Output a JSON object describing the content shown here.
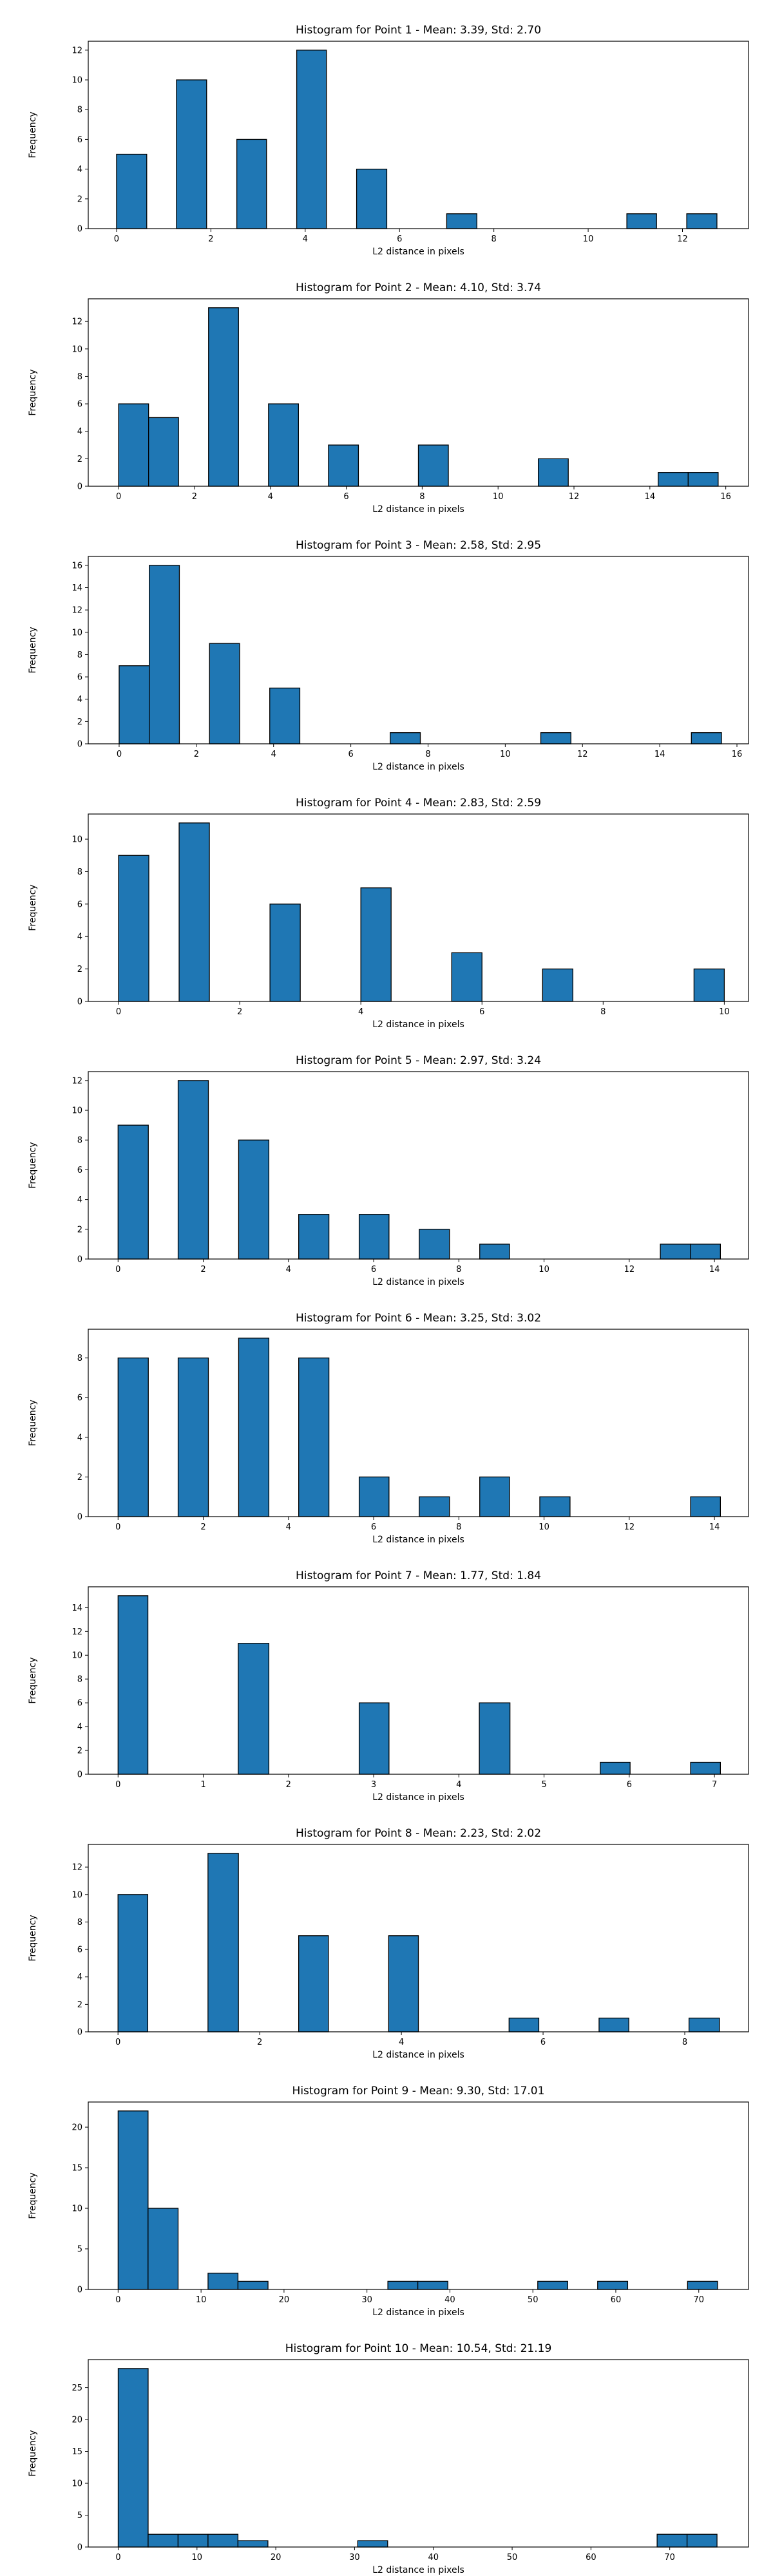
{
  "chart_data": [
    {
      "type": "bar",
      "title": "Histogram for Point 1 - Mean: 3.39, Std: 2.70",
      "xlabel": "L2 distance in pixels",
      "ylabel": "Frequency",
      "xlim": [
        -0.6,
        13.4
      ],
      "ylim": [
        0,
        12.6
      ],
      "xticks": [
        0,
        2,
        4,
        6,
        8,
        10,
        12
      ],
      "yticks": [
        0,
        2,
        4,
        6,
        8,
        10,
        12
      ],
      "bins": [
        {
          "x0": 0.0,
          "x1": 0.64,
          "count": 5
        },
        {
          "x0": 1.27,
          "x1": 1.91,
          "count": 10
        },
        {
          "x0": 2.55,
          "x1": 3.18,
          "count": 6
        },
        {
          "x0": 3.82,
          "x1": 4.45,
          "count": 12
        },
        {
          "x0": 5.09,
          "x1": 5.73,
          "count": 4
        },
        {
          "x0": 7.0,
          "x1": 7.64,
          "count": 1
        },
        {
          "x0": 10.82,
          "x1": 11.45,
          "count": 1
        },
        {
          "x0": 12.09,
          "x1": 12.73,
          "count": 1
        }
      ]
    },
    {
      "type": "bar",
      "title": "Histogram for Point 2 - Mean: 4.10, Std: 3.74",
      "xlabel": "L2 distance in pixels",
      "ylabel": "Frequency",
      "xlim": [
        -0.8,
        16.6
      ],
      "ylim": [
        0,
        13.65
      ],
      "xticks": [
        0,
        2,
        4,
        6,
        8,
        10,
        12,
        14,
        16
      ],
      "yticks": [
        0,
        2,
        4,
        6,
        8,
        10,
        12
      ],
      "bins": [
        {
          "x0": 0.0,
          "x1": 0.79,
          "count": 6
        },
        {
          "x0": 0.79,
          "x1": 1.58,
          "count": 5
        },
        {
          "x0": 2.37,
          "x1": 3.16,
          "count": 13
        },
        {
          "x0": 3.95,
          "x1": 4.74,
          "count": 6
        },
        {
          "x0": 5.53,
          "x1": 6.32,
          "count": 3
        },
        {
          "x0": 7.9,
          "x1": 8.69,
          "count": 3
        },
        {
          "x0": 11.06,
          "x1": 11.85,
          "count": 2
        },
        {
          "x0": 14.22,
          "x1": 15.01,
          "count": 1
        },
        {
          "x0": 15.01,
          "x1": 15.8,
          "count": 1
        }
      ]
    },
    {
      "type": "bar",
      "title": "Histogram for Point 3 - Mean: 2.58, Std: 2.95",
      "xlabel": "L2 distance in pixels",
      "ylabel": "Frequency",
      "xlim": [
        -0.8,
        16.3
      ],
      "ylim": [
        0,
        16.8
      ],
      "xticks": [
        0,
        2,
        4,
        6,
        8,
        10,
        12,
        14,
        16
      ],
      "yticks": [
        0,
        2,
        4,
        6,
        8,
        10,
        12,
        14,
        16
      ],
      "bins": [
        {
          "x0": 0.0,
          "x1": 0.78,
          "count": 7
        },
        {
          "x0": 0.78,
          "x1": 1.56,
          "count": 16
        },
        {
          "x0": 2.34,
          "x1": 3.12,
          "count": 9
        },
        {
          "x0": 3.9,
          "x1": 4.68,
          "count": 5
        },
        {
          "x0": 7.02,
          "x1": 7.8,
          "count": 1
        },
        {
          "x0": 10.92,
          "x1": 11.7,
          "count": 1
        },
        {
          "x0": 14.82,
          "x1": 15.6,
          "count": 1
        }
      ]
    },
    {
      "type": "bar",
      "title": "Histogram for Point 4 - Mean: 2.83, Std: 2.59",
      "xlabel": "L2 distance in pixels",
      "ylabel": "Frequency",
      "xlim": [
        -0.5,
        10.4
      ],
      "ylim": [
        0,
        11.55
      ],
      "xticks": [
        0,
        2,
        4,
        6,
        8,
        10
      ],
      "yticks": [
        0,
        2,
        4,
        6,
        8,
        10
      ],
      "bins": [
        {
          "x0": 0.0,
          "x1": 0.5,
          "count": 9
        },
        {
          "x0": 1.0,
          "x1": 1.5,
          "count": 11
        },
        {
          "x0": 2.5,
          "x1": 3.0,
          "count": 6
        },
        {
          "x0": 4.0,
          "x1": 4.5,
          "count": 7
        },
        {
          "x0": 5.5,
          "x1": 6.0,
          "count": 3
        },
        {
          "x0": 7.0,
          "x1": 7.5,
          "count": 2
        },
        {
          "x0": 9.5,
          "x1": 10.0,
          "count": 2
        }
      ]
    },
    {
      "type": "bar",
      "title": "Histogram for Point 5 - Mean: 2.97, Std: 3.24",
      "xlabel": "L2 distance in pixels",
      "ylabel": "Frequency",
      "xlim": [
        -0.7,
        14.8
      ],
      "ylim": [
        0,
        12.6
      ],
      "xticks": [
        0,
        2,
        4,
        6,
        8,
        10,
        12,
        14
      ],
      "yticks": [
        0,
        2,
        4,
        6,
        8,
        10,
        12
      ],
      "bins": [
        {
          "x0": 0.0,
          "x1": 0.71,
          "count": 9
        },
        {
          "x0": 1.41,
          "x1": 2.12,
          "count": 12
        },
        {
          "x0": 2.83,
          "x1": 3.54,
          "count": 8
        },
        {
          "x0": 4.24,
          "x1": 4.95,
          "count": 3
        },
        {
          "x0": 5.66,
          "x1": 6.36,
          "count": 3
        },
        {
          "x0": 7.07,
          "x1": 7.78,
          "count": 2
        },
        {
          "x0": 8.49,
          "x1": 9.19,
          "count": 1
        },
        {
          "x0": 12.73,
          "x1": 13.44,
          "count": 1
        },
        {
          "x0": 13.44,
          "x1": 14.14,
          "count": 1
        }
      ]
    },
    {
      "type": "bar",
      "title": "Histogram for Point 6 - Mean: 3.25, Std: 3.02",
      "xlabel": "L2 distance in pixels",
      "ylabel": "Frequency",
      "xlim": [
        -0.7,
        14.8
      ],
      "ylim": [
        0,
        9.45
      ],
      "xticks": [
        0,
        2,
        4,
        6,
        8,
        10,
        12,
        14
      ],
      "yticks": [
        0,
        2,
        4,
        6,
        8
      ],
      "bins": [
        {
          "x0": 0.0,
          "x1": 0.71,
          "count": 8
        },
        {
          "x0": 1.41,
          "x1": 2.12,
          "count": 8
        },
        {
          "x0": 2.83,
          "x1": 3.54,
          "count": 9
        },
        {
          "x0": 4.24,
          "x1": 4.95,
          "count": 8
        },
        {
          "x0": 5.66,
          "x1": 6.36,
          "count": 2
        },
        {
          "x0": 7.07,
          "x1": 7.78,
          "count": 1
        },
        {
          "x0": 8.49,
          "x1": 9.19,
          "count": 2
        },
        {
          "x0": 9.9,
          "x1": 10.61,
          "count": 1
        },
        {
          "x0": 13.44,
          "x1": 14.14,
          "count": 1
        }
      ]
    },
    {
      "type": "bar",
      "title": "Histogram for Point 7 - Mean: 1.77, Std: 1.84",
      "xlabel": "L2 distance in pixels",
      "ylabel": "Frequency",
      "xlim": [
        -0.35,
        7.4
      ],
      "ylim": [
        0,
        15.75
      ],
      "xticks": [
        0,
        1,
        2,
        3,
        4,
        5,
        6,
        7
      ],
      "yticks": [
        0,
        2,
        4,
        6,
        8,
        10,
        12,
        14
      ],
      "bins": [
        {
          "x0": 0.0,
          "x1": 0.35,
          "count": 15
        },
        {
          "x0": 1.41,
          "x1": 1.77,
          "count": 11
        },
        {
          "x0": 2.83,
          "x1": 3.18,
          "count": 6
        },
        {
          "x0": 4.24,
          "x1": 4.6,
          "count": 6
        },
        {
          "x0": 5.66,
          "x1": 6.01,
          "count": 1
        },
        {
          "x0": 6.72,
          "x1": 7.07,
          "count": 1
        }
      ]
    },
    {
      "type": "bar",
      "title": "Histogram for Point 8 - Mean: 2.23, Std: 2.02",
      "xlabel": "L2 distance in pixels",
      "ylabel": "Frequency",
      "xlim": [
        -0.42,
        8.9
      ],
      "ylim": [
        0,
        13.65
      ],
      "xticks": [
        0,
        2,
        4,
        6,
        8
      ],
      "yticks": [
        0,
        2,
        4,
        6,
        8,
        10,
        12
      ],
      "bins": [
        {
          "x0": 0.0,
          "x1": 0.42,
          "count": 10
        },
        {
          "x0": 1.27,
          "x1": 1.7,
          "count": 13
        },
        {
          "x0": 2.55,
          "x1": 2.97,
          "count": 7
        },
        {
          "x0": 3.82,
          "x1": 4.24,
          "count": 7
        },
        {
          "x0": 5.52,
          "x1": 5.94,
          "count": 1
        },
        {
          "x0": 6.79,
          "x1": 7.21,
          "count": 1
        },
        {
          "x0": 8.06,
          "x1": 8.49,
          "count": 1
        }
      ]
    },
    {
      "type": "bar",
      "title": "Histogram for Point 9 - Mean: 9.30, Std: 17.01",
      "xlabel": "L2 distance in pixels",
      "ylabel": "Frequency",
      "xlim": [
        -3.6,
        76.0
      ],
      "ylim": [
        0,
        23.1
      ],
      "xticks": [
        0,
        10,
        20,
        30,
        40,
        50,
        60,
        70
      ],
      "yticks": [
        0,
        5,
        10,
        15,
        20
      ],
      "bins": [
        {
          "x0": 0.0,
          "x1": 3.61,
          "count": 22
        },
        {
          "x0": 3.61,
          "x1": 7.23,
          "count": 10
        },
        {
          "x0": 10.84,
          "x1": 14.45,
          "count": 2
        },
        {
          "x0": 14.45,
          "x1": 18.07,
          "count": 1
        },
        {
          "x0": 32.52,
          "x1": 36.13,
          "count": 1
        },
        {
          "x0": 36.13,
          "x1": 39.75,
          "count": 1
        },
        {
          "x0": 50.59,
          "x1": 54.2,
          "count": 1
        },
        {
          "x0": 57.81,
          "x1": 61.43,
          "count": 1
        },
        {
          "x0": 68.65,
          "x1": 72.27,
          "count": 1
        }
      ]
    },
    {
      "type": "bar",
      "title": "Histogram for Point 10 - Mean: 10.54, Std: 21.19",
      "xlabel": "L2 distance in pixels",
      "ylabel": "Frequency",
      "xlim": [
        -3.8,
        80.0
      ],
      "ylim": [
        0,
        29.4
      ],
      "xticks": [
        0,
        10,
        20,
        30,
        40,
        50,
        60,
        70
      ],
      "yticks": [
        0,
        5,
        10,
        15,
        20,
        25
      ],
      "bins": [
        {
          "x0": 0.0,
          "x1": 3.8,
          "count": 28
        },
        {
          "x0": 3.8,
          "x1": 7.6,
          "count": 2
        },
        {
          "x0": 7.6,
          "x1": 11.4,
          "count": 2
        },
        {
          "x0": 11.4,
          "x1": 15.2,
          "count": 2
        },
        {
          "x0": 15.2,
          "x1": 19.0,
          "count": 1
        },
        {
          "x0": 30.4,
          "x1": 34.2,
          "count": 1
        },
        {
          "x0": 68.4,
          "x1": 72.2,
          "count": 2
        },
        {
          "x0": 72.2,
          "x1": 76.0,
          "count": 2
        }
      ]
    }
  ]
}
